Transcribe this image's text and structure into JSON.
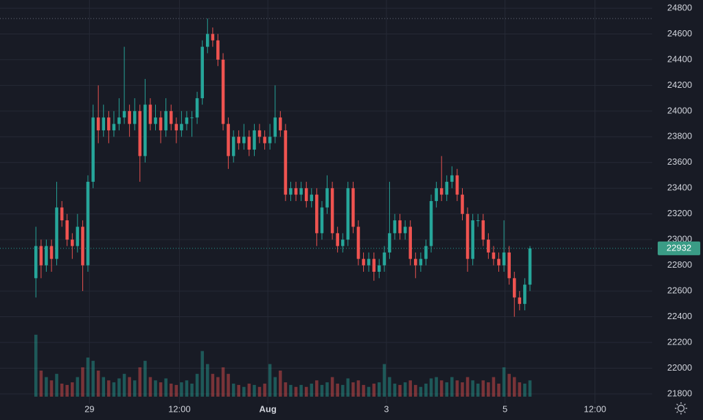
{
  "chart_data": {
    "type": "candlestick",
    "x": [
      0,
      1,
      2,
      3,
      4,
      5,
      6,
      7,
      8,
      9,
      10,
      11,
      12,
      13,
      14,
      15,
      16,
      17,
      18,
      19,
      20,
      21,
      22,
      23,
      24,
      25,
      26,
      27,
      28,
      29,
      30,
      31,
      32,
      33,
      34,
      35,
      36,
      37,
      38,
      39,
      40,
      41,
      42,
      43,
      44,
      45,
      46,
      47,
      48,
      49,
      50,
      51,
      52,
      53,
      54,
      55,
      56,
      57,
      58,
      59,
      60,
      61,
      62,
      63,
      64,
      65,
      66,
      67,
      68,
      69,
      70,
      71,
      72,
      73,
      74,
      75,
      76,
      77,
      78,
      79,
      80,
      81,
      82,
      83,
      84,
      85,
      86,
      87,
      88,
      89,
      90,
      91,
      92,
      93,
      94,
      95
    ],
    "open": [
      22700,
      22950,
      22800,
      22950,
      22850,
      23250,
      23150,
      23000,
      22950,
      23100,
      22800,
      23450,
      23950,
      23850,
      23950,
      23850,
      23900,
      23950,
      24000,
      23900,
      24000,
      23650,
      24050,
      23900,
      23950,
      23850,
      24000,
      23900,
      23850,
      23900,
      23950,
      23950,
      24100,
      24500,
      24600,
      24550,
      24400,
      23900,
      23650,
      23800,
      23750,
      23800,
      23700,
      23850,
      23800,
      23750,
      23800,
      23950,
      23850,
      23350,
      23400,
      23350,
      23400,
      23300,
      23350,
      23050,
      23250,
      23400,
      23050,
      22950,
      23000,
      23400,
      23100,
      22850,
      22800,
      22850,
      22750,
      22800,
      22900,
      23050,
      23150,
      23050,
      23100,
      22850,
      22800,
      22850,
      22950,
      23300,
      23400,
      23350,
      23450,
      23500,
      23350,
      23200,
      22850,
      23150,
      23150,
      23000,
      22900,
      22850,
      22800,
      22900,
      22700,
      22550,
      22500,
      22650
    ],
    "high": [
      23100,
      23000,
      23000,
      23000,
      23450,
      23300,
      23200,
      23050,
      23200,
      23150,
      23500,
      24050,
      24200,
      24050,
      24000,
      24000,
      24100,
      24500,
      24050,
      24100,
      24050,
      24250,
      24100,
      24050,
      24000,
      24100,
      24050,
      23950,
      24000,
      24000,
      24000,
      24150,
      24550,
      24720,
      24650,
      24600,
      24450,
      23950,
      23850,
      23850,
      23900,
      23850,
      23900,
      23900,
      23850,
      23900,
      24200,
      24000,
      23900,
      23450,
      23450,
      23450,
      23450,
      23400,
      23400,
      23300,
      23500,
      23450,
      23100,
      23050,
      23450,
      23450,
      23150,
      22900,
      22900,
      22900,
      22850,
      22950,
      23450,
      23200,
      23200,
      23150,
      23150,
      22900,
      22900,
      23000,
      23350,
      23450,
      23650,
      23500,
      23570,
      23550,
      23400,
      23250,
      23200,
      23200,
      23200,
      23050,
      22950,
      22900,
      23150,
      22950,
      22750,
      22600,
      22700,
      22950
    ],
    "low": [
      22550,
      22700,
      22750,
      22750,
      22800,
      23100,
      22950,
      22850,
      22900,
      22600,
      22750,
      23400,
      23750,
      23800,
      23750,
      23800,
      23850,
      23900,
      23800,
      23850,
      23450,
      23600,
      23850,
      23850,
      23750,
      23800,
      23850,
      23750,
      23800,
      23850,
      23800,
      23900,
      24050,
      24450,
      24500,
      24350,
      23850,
      23550,
      23600,
      23700,
      23700,
      23650,
      23650,
      23750,
      23700,
      23700,
      23750,
      23800,
      23300,
      23300,
      23300,
      23300,
      23250,
      23250,
      22950,
      23000,
      23200,
      23000,
      22900,
      22900,
      22950,
      23050,
      22800,
      22750,
      22750,
      22680,
      22700,
      22750,
      22850,
      23000,
      23000,
      23000,
      22800,
      22700,
      22750,
      22800,
      22900,
      23250,
      23300,
      23300,
      23400,
      23300,
      23150,
      22750,
      22800,
      23100,
      22950,
      22850,
      22800,
      22750,
      22750,
      22650,
      22400,
      22450,
      22450,
      22600
    ],
    "close": [
      22950,
      22800,
      22950,
      22850,
      23250,
      23150,
      23000,
      22950,
      23100,
      22800,
      23450,
      23950,
      23850,
      23950,
      23850,
      23900,
      23950,
      24000,
      23900,
      24000,
      23650,
      24050,
      23900,
      23950,
      23850,
      24000,
      23900,
      23850,
      23900,
      23950,
      23950,
      24100,
      24500,
      24600,
      24550,
      24400,
      23900,
      23650,
      23800,
      23750,
      23800,
      23700,
      23850,
      23800,
      23750,
      23800,
      23950,
      23850,
      23350,
      23400,
      23350,
      23400,
      23300,
      23350,
      23050,
      23250,
      23400,
      23050,
      22950,
      23000,
      23400,
      23100,
      22850,
      22800,
      22850,
      22750,
      22800,
      22900,
      23050,
      23150,
      23050,
      23100,
      22850,
      22800,
      22850,
      22950,
      23300,
      23400,
      23350,
      23450,
      23500,
      23350,
      23200,
      22850,
      23150,
      23150,
      23000,
      22900,
      22850,
      22800,
      22900,
      22700,
      22550,
      22500,
      22650,
      22932
    ],
    "volume": [
      95,
      40,
      30,
      25,
      35,
      20,
      18,
      22,
      30,
      45,
      60,
      55,
      40,
      30,
      25,
      22,
      28,
      35,
      30,
      25,
      45,
      55,
      30,
      25,
      22,
      28,
      20,
      18,
      22,
      25,
      20,
      35,
      70,
      50,
      35,
      30,
      45,
      35,
      20,
      18,
      15,
      20,
      18,
      15,
      20,
      50,
      30,
      40,
      22,
      18,
      15,
      18,
      15,
      20,
      25,
      18,
      22,
      30,
      20,
      18,
      28,
      22,
      25,
      18,
      15,
      20,
      22,
      50,
      30,
      20,
      18,
      22,
      25,
      18,
      15,
      20,
      28,
      30,
      25,
      22,
      30,
      25,
      22,
      30,
      25,
      20,
      25,
      22,
      30,
      20,
      45,
      35,
      30,
      22,
      20,
      25
    ],
    "vlim": [
      0,
      100
    ],
    "up_color": "#26a69a",
    "down_color": "#ef5350",
    "last_price": 22932,
    "xlim": [
      -6.9,
      118.5
    ],
    "xticks": [
      {
        "value": 10.3,
        "label": "29"
      },
      {
        "value": 27.6,
        "label": "12:00"
      },
      {
        "value": 44.6,
        "label": "Aug"
      },
      {
        "value": 67.4,
        "label": "3"
      },
      {
        "value": 90.2,
        "label": "5"
      },
      {
        "value": 107.5,
        "label": "12:00"
      }
    ],
    "ylim": [
      21725,
      24864
    ],
    "yticks": [
      21800,
      22000,
      22200,
      22400,
      22600,
      22800,
      23000,
      23200,
      23400,
      23600,
      23800,
      24000,
      24200,
      24400,
      24600,
      24800
    ],
    "grid": true
  }
}
